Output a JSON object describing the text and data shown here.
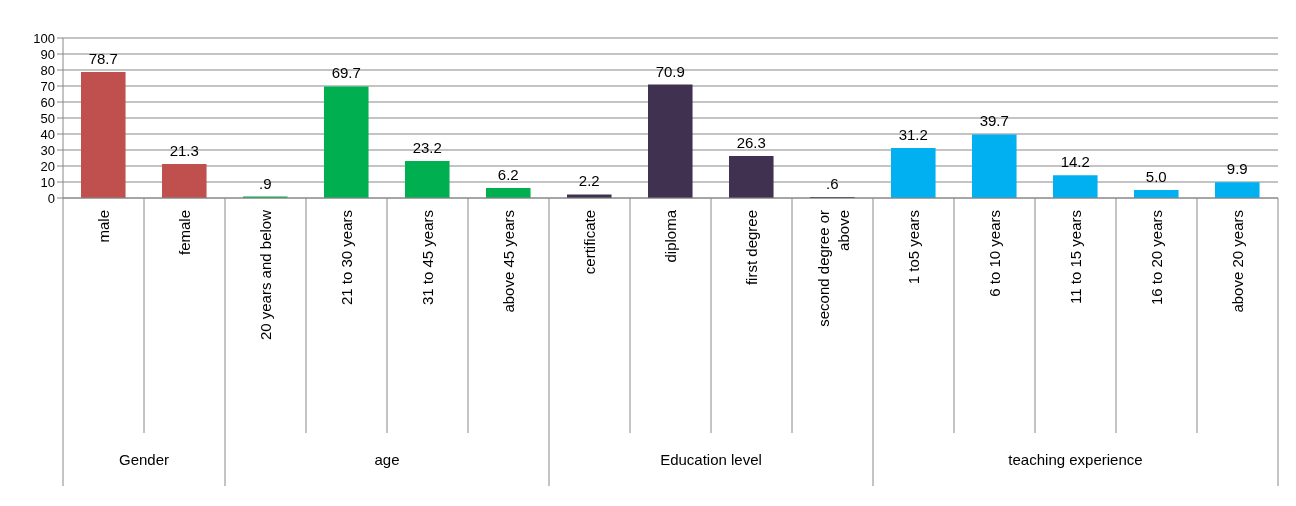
{
  "chart_data": {
    "type": "bar",
    "categories": [
      "male",
      "female",
      "20 years and below",
      "21 to 30 years",
      "31 to 45 years",
      "above 45 years",
      "certificate",
      "diploma",
      "first degree",
      "second degree or above",
      "1 to5 years",
      "6 to 10 years",
      "11 to 15 years",
      "16 to 20 years",
      "above 20 years"
    ],
    "values": [
      78.7,
      21.3,
      0.9,
      69.7,
      23.2,
      6.2,
      2.2,
      70.9,
      26.3,
      0.6,
      31.2,
      39.7,
      14.2,
      5.0,
      9.9
    ],
    "value_labels": [
      "78.7",
      "21.3",
      ".9",
      "69.7",
      "23.2",
      "6.2",
      "2.2",
      "70.9",
      "26.3",
      ".6",
      "31.2",
      "39.7",
      "14.2",
      "5.0",
      "9.9"
    ],
    "colors": [
      "#c0504d",
      "#c0504d",
      "#00b050",
      "#00b050",
      "#00b050",
      "#00b050",
      "#403151",
      "#403151",
      "#403151",
      "#403151",
      "#00b0f0",
      "#00b0f0",
      "#00b0f0",
      "#00b0f0",
      "#00b0f0"
    ],
    "annotations": [
      "Gender",
      "age",
      "Education level",
      "teaching experience"
    ],
    "ylim": [
      0,
      100
    ],
    "yticks": [
      0,
      10,
      20,
      30,
      40,
      50,
      60,
      70,
      80,
      90,
      100
    ],
    "grid": "y",
    "legend": false
  }
}
